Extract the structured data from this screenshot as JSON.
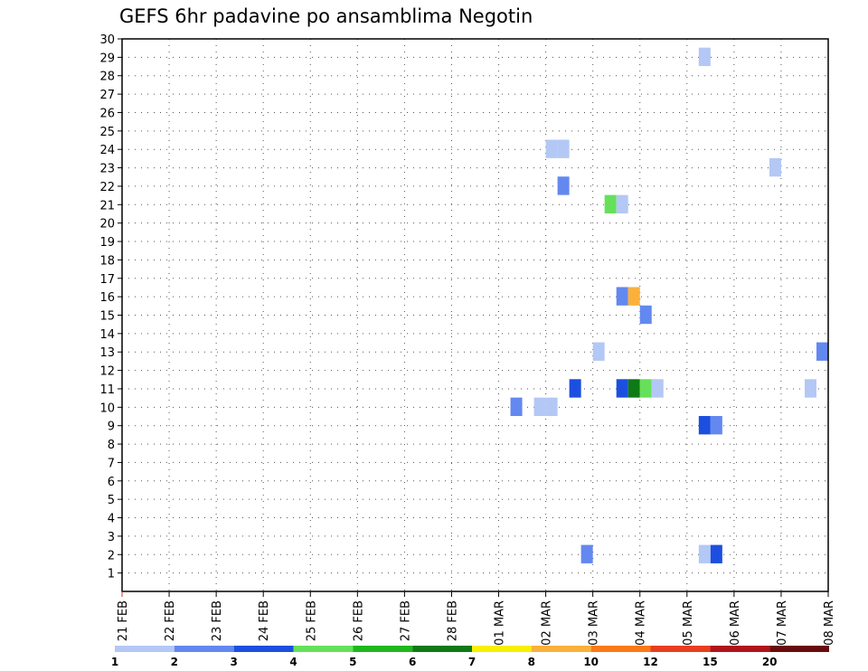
{
  "chart_data": {
    "type": "heatmap",
    "title": "GEFS 6hr padavine po ansamblima Negotin",
    "xlabel": "",
    "ylabel": "",
    "x_tick_labels": [
      "21 FEB",
      "22 FEB",
      "23 FEB",
      "24 FEB",
      "25 FEB",
      "26 FEB",
      "27 FEB",
      "28 FEB",
      "01 MAR",
      "02 MAR",
      "03 MAR",
      "04 MAR",
      "05 MAR",
      "06 MAR",
      "07 MAR",
      "08 MAR"
    ],
    "xlim": [
      0,
      60
    ],
    "ylim": [
      0,
      30
    ],
    "y_ticks": [
      1,
      2,
      3,
      4,
      5,
      6,
      7,
      8,
      9,
      10,
      11,
      12,
      13,
      14,
      15,
      16,
      17,
      18,
      19,
      20,
      21,
      22,
      23,
      24,
      25,
      26,
      27,
      28,
      29,
      30
    ],
    "grid": true,
    "legend_placement": "bottom",
    "color_scale": {
      "labels": [
        "1",
        "2",
        "3",
        "4",
        "5",
        "6",
        "7",
        "8",
        "10",
        "12",
        "15",
        "20"
      ],
      "colors": [
        "#b4c8f5",
        "#6388f0",
        "#1c4fe0",
        "#66e05a",
        "#1fb81c",
        "#0e7a14",
        "#f7f000",
        "#fbb03c",
        "#fb7a18",
        "#e83e1e",
        "#b0141a",
        "#6a0a0a"
      ]
    },
    "cells": [
      {
        "t": 49,
        "m": 29,
        "c": 0
      },
      {
        "t": 36,
        "m": 24,
        "c": 0
      },
      {
        "t": 37,
        "m": 24,
        "c": 0
      },
      {
        "t": 55,
        "m": 23,
        "c": 0
      },
      {
        "t": 37,
        "m": 22,
        "c": 1
      },
      {
        "t": 41,
        "m": 21,
        "c": 3
      },
      {
        "t": 42,
        "m": 21,
        "c": 0
      },
      {
        "t": 42,
        "m": 16,
        "c": 1
      },
      {
        "t": 43,
        "m": 16,
        "c": 7
      },
      {
        "t": 44,
        "m": 15,
        "c": 1
      },
      {
        "t": 40,
        "m": 13,
        "c": 0
      },
      {
        "t": 59,
        "m": 13,
        "c": 1
      },
      {
        "t": 38,
        "m": 11,
        "c": 2
      },
      {
        "t": 42,
        "m": 11,
        "c": 2
      },
      {
        "t": 43,
        "m": 11,
        "c": 5
      },
      {
        "t": 44,
        "m": 11,
        "c": 3
      },
      {
        "t": 45,
        "m": 11,
        "c": 0
      },
      {
        "t": 58,
        "m": 11,
        "c": 0
      },
      {
        "t": 33,
        "m": 10,
        "c": 1
      },
      {
        "t": 35,
        "m": 10,
        "c": 0
      },
      {
        "t": 36,
        "m": 10,
        "c": 0
      },
      {
        "t": 49,
        "m": 9,
        "c": 2
      },
      {
        "t": 50,
        "m": 9,
        "c": 1
      },
      {
        "t": 39,
        "m": 2,
        "c": 1
      },
      {
        "t": 49,
        "m": 2,
        "c": 0
      },
      {
        "t": 50,
        "m": 2,
        "c": 2
      }
    ]
  }
}
